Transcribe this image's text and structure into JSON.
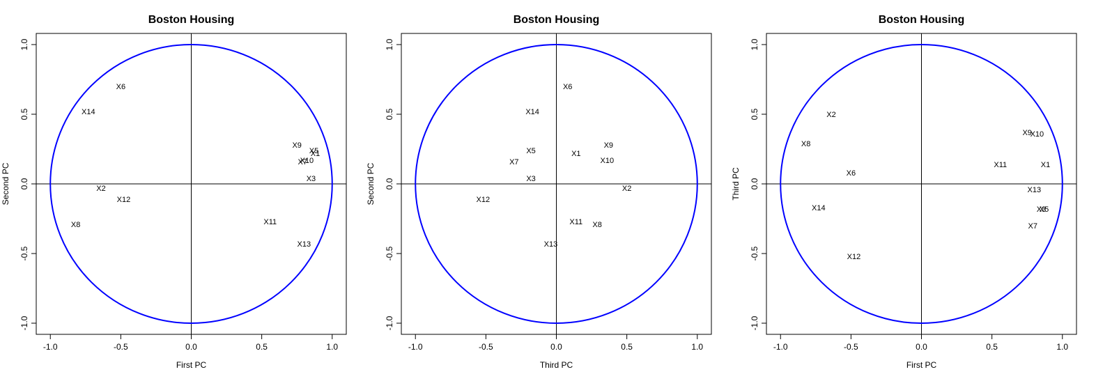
{
  "figure": {
    "background": "#ffffff",
    "circle_color": "#0000ff"
  },
  "chart_data": [
    {
      "type": "scatter",
      "title": "Boston Housing",
      "xlabel": "First PC",
      "ylabel": "Second PC",
      "xlim": [
        -1.1,
        1.1
      ],
      "ylim": [
        -1.08,
        1.08
      ],
      "xticks": [
        "-1.0",
        "-0.5",
        "0.0",
        "0.5",
        "1.0"
      ],
      "yticks": [
        "-1.0",
        "-0.5",
        "0.0",
        "0.5",
        "1.0"
      ],
      "unit_circle": true,
      "points": [
        {
          "label": "X1",
          "x": 0.88,
          "y": 0.22
        },
        {
          "label": "X2",
          "x": -0.64,
          "y": -0.03
        },
        {
          "label": "X3",
          "x": 0.85,
          "y": 0.04
        },
        {
          "label": "X5",
          "x": 0.87,
          "y": 0.24
        },
        {
          "label": "X6",
          "x": -0.5,
          "y": 0.7
        },
        {
          "label": "X7",
          "x": 0.79,
          "y": 0.16
        },
        {
          "label": "X8",
          "x": -0.82,
          "y": -0.29
        },
        {
          "label": "X9",
          "x": 0.75,
          "y": 0.28
        },
        {
          "label": "X10",
          "x": 0.82,
          "y": 0.17
        },
        {
          "label": "X11",
          "x": 0.56,
          "y": -0.27
        },
        {
          "label": "X12",
          "x": -0.48,
          "y": -0.11
        },
        {
          "label": "X13",
          "x": 0.8,
          "y": -0.43
        },
        {
          "label": "X14",
          "x": -0.73,
          "y": 0.52
        }
      ]
    },
    {
      "type": "scatter",
      "title": "Boston Housing",
      "xlabel": "Third PC",
      "ylabel": "Second PC",
      "xlim": [
        -1.1,
        1.1
      ],
      "ylim": [
        -1.08,
        1.08
      ],
      "xticks": [
        "-1.0",
        "-0.5",
        "0.0",
        "0.5",
        "1.0"
      ],
      "yticks": [
        "-1.0",
        "-0.5",
        "0.0",
        "0.5",
        "1.0"
      ],
      "unit_circle": true,
      "points": [
        {
          "label": "X1",
          "x": 0.14,
          "y": 0.22
        },
        {
          "label": "X2",
          "x": 0.5,
          "y": -0.03
        },
        {
          "label": "X3",
          "x": -0.18,
          "y": 0.04
        },
        {
          "label": "X5",
          "x": -0.18,
          "y": 0.24
        },
        {
          "label": "X6",
          "x": 0.08,
          "y": 0.7
        },
        {
          "label": "X7",
          "x": -0.3,
          "y": 0.16
        },
        {
          "label": "X8",
          "x": 0.29,
          "y": -0.29
        },
        {
          "label": "X9",
          "x": 0.37,
          "y": 0.28
        },
        {
          "label": "X10",
          "x": 0.36,
          "y": 0.17
        },
        {
          "label": "X11",
          "x": 0.14,
          "y": -0.27
        },
        {
          "label": "X12",
          "x": -0.52,
          "y": -0.11
        },
        {
          "label": "X13",
          "x": -0.04,
          "y": -0.43
        },
        {
          "label": "X14",
          "x": -0.17,
          "y": 0.52
        }
      ]
    },
    {
      "type": "scatter",
      "title": "Boston Housing",
      "xlabel": "First PC",
      "ylabel": "Third PC",
      "xlim": [
        -1.1,
        1.1
      ],
      "ylim": [
        -1.08,
        1.08
      ],
      "xticks": [
        "-1.0",
        "-0.5",
        "0.0",
        "0.5",
        "1.0"
      ],
      "yticks": [
        "-1.0",
        "-0.5",
        "0.0",
        "0.5",
        "1.0"
      ],
      "unit_circle": true,
      "points": [
        {
          "label": "X1",
          "x": 0.88,
          "y": 0.14
        },
        {
          "label": "X2",
          "x": -0.64,
          "y": 0.5
        },
        {
          "label": "X3",
          "x": 0.85,
          "y": -0.18
        },
        {
          "label": "X5",
          "x": 0.87,
          "y": -0.18
        },
        {
          "label": "X6",
          "x": -0.5,
          "y": 0.08
        },
        {
          "label": "X7",
          "x": 0.79,
          "y": -0.3
        },
        {
          "label": "X8",
          "x": -0.82,
          "y": 0.29
        },
        {
          "label": "X9",
          "x": 0.75,
          "y": 0.37
        },
        {
          "label": "X10",
          "x": 0.82,
          "y": 0.36
        },
        {
          "label": "X11",
          "x": 0.56,
          "y": 0.14
        },
        {
          "label": "X12",
          "x": -0.48,
          "y": -0.52
        },
        {
          "label": "X13",
          "x": 0.8,
          "y": -0.04
        },
        {
          "label": "X14",
          "x": -0.73,
          "y": -0.17
        }
      ]
    }
  ]
}
